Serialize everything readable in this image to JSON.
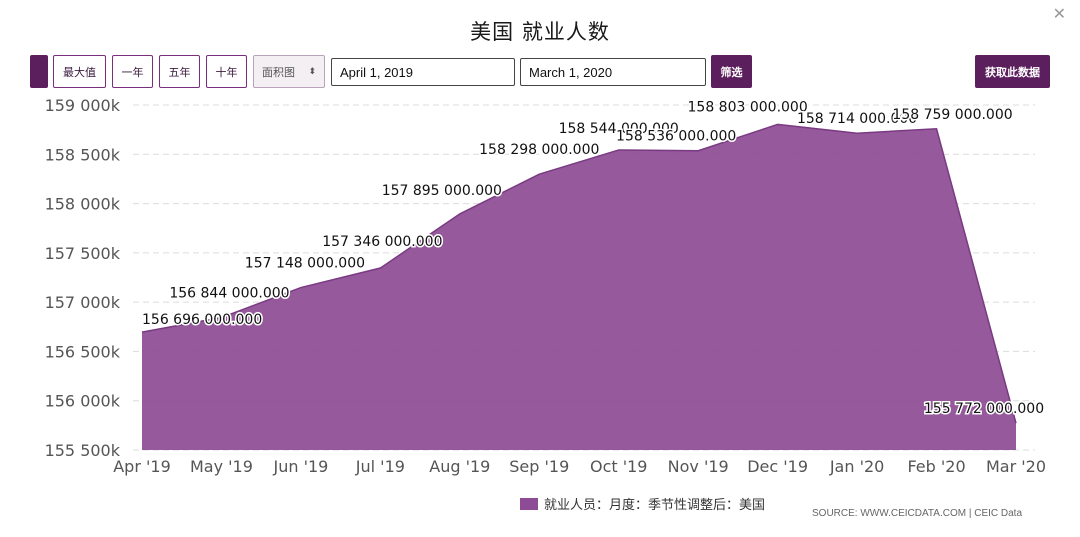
{
  "title": "美国 就业人数",
  "toolbar": {
    "max_label": "最大值",
    "one_year_label": "一年",
    "five_year_label": "五年",
    "ten_year_label": "十年",
    "chart_type_selected": "面积图",
    "start_date": "April 1, 2019",
    "end_date": "March 1, 2020",
    "filter_label": "筛选",
    "get_data_label": "获取此数据"
  },
  "legend_label": "就业人员：月度：季节性调整后：美国",
  "source_text": "SOURCE: WWW.CEICDATA.COM | CEIC Data",
  "colors": {
    "fill": "#8c4b94",
    "stroke": "#7a3a82",
    "accent": "#5b1f5d"
  },
  "chart_data": {
    "type": "area",
    "categories": [
      "Apr '19",
      "May '19",
      "Jun '19",
      "Jul '19",
      "Aug '19",
      "Sep '19",
      "Oct '19",
      "Nov '19",
      "Dec '19",
      "Jan '20",
      "Feb '20",
      "Mar '20"
    ],
    "values": [
      156696000,
      156844000,
      157148000,
      157346000,
      157895000,
      158298000,
      158544000,
      158536000,
      158803000,
      158714000,
      158759000,
      155772000
    ],
    "data_labels": [
      "156 696 000.000",
      "156 844 000.000",
      "157 148 000.000",
      "157 346 000.000",
      "157 895 000.000",
      "158 298 000.000",
      "158 544 000.000",
      "158 536 000.000",
      "158 803 000.000",
      "158 714 000.000",
      "158 759 000.000",
      "155 772 000.000"
    ],
    "yticks": [
      155500000,
      156000000,
      156500000,
      157000000,
      157500000,
      158000000,
      158500000,
      159000000
    ],
    "ytick_labels": [
      "155 500k",
      "156 000k",
      "156 500k",
      "157 000k",
      "157 500k",
      "158 000k",
      "158 500k",
      "159 000k"
    ],
    "ylim": [
      155500000,
      159000000
    ],
    "grid": true
  }
}
